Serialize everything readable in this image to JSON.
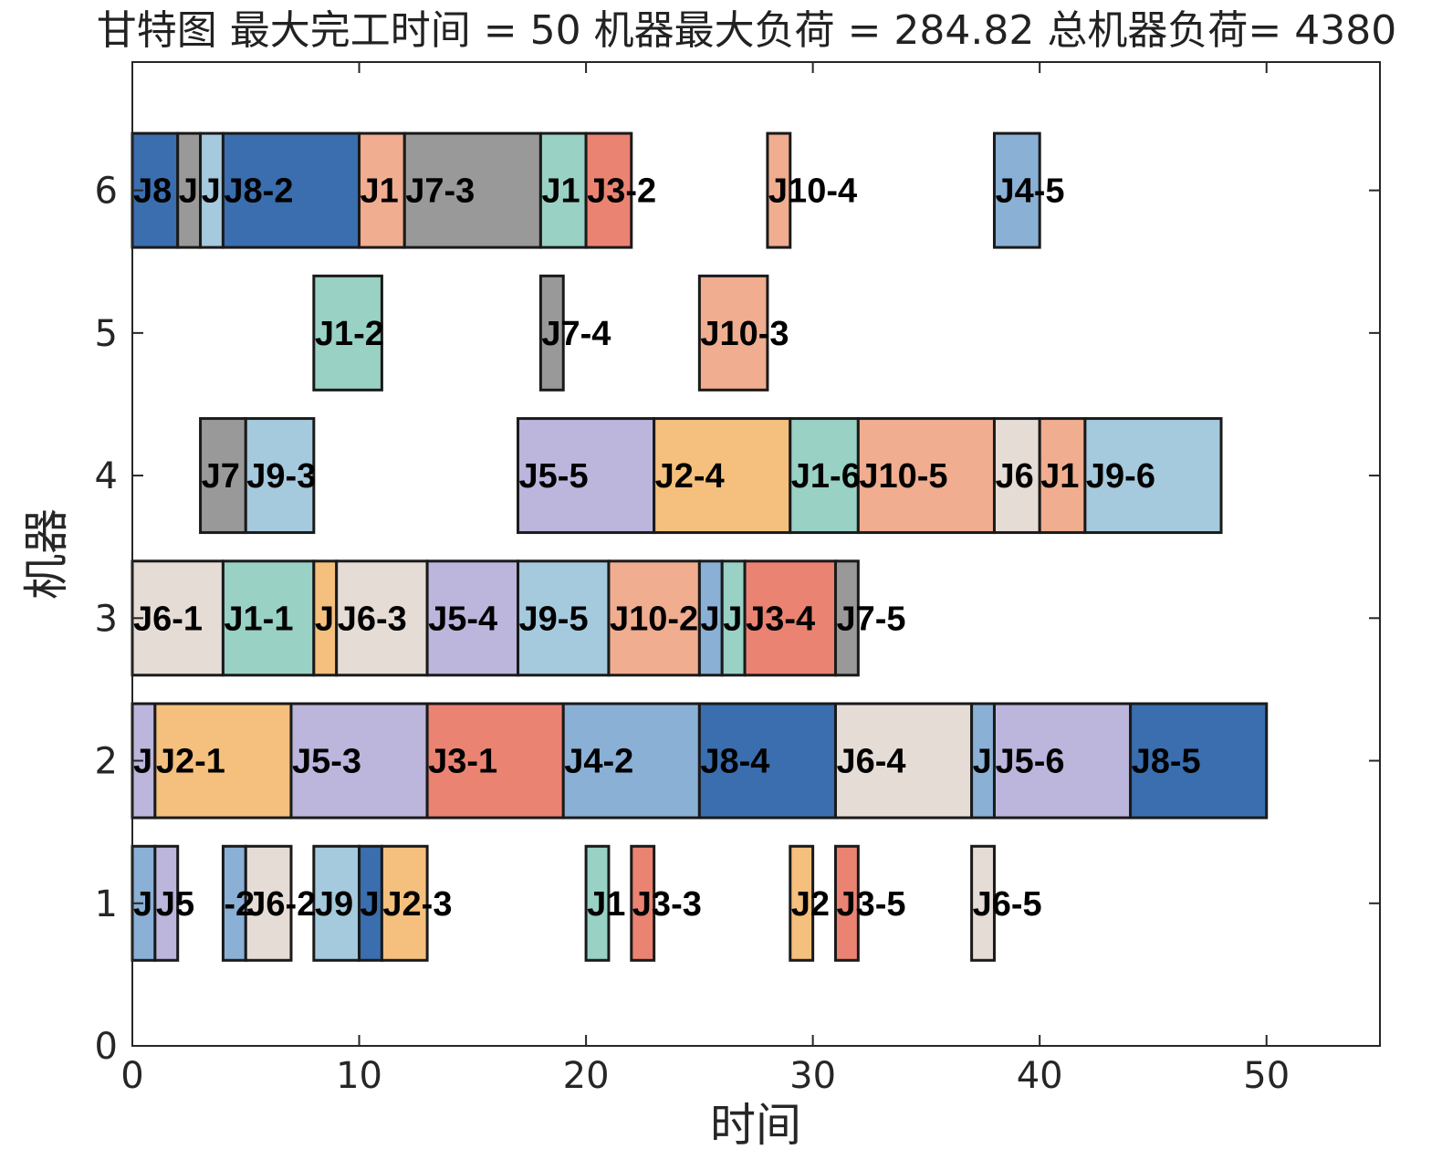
{
  "chart_data": {
    "type": "gantt",
    "title": "甘特图 最大完工时间 = 50 机器最大负荷 = 284.82 总机器负荷= 4380",
    "xlabel": "时间",
    "ylabel": "机器",
    "xlim": [
      0,
      55
    ],
    "ylim": [
      0,
      6.9
    ],
    "xticks": [
      "0",
      "10",
      "20",
      "30",
      "40",
      "50"
    ],
    "yticks": [
      "0",
      "1",
      "2",
      "3",
      "4",
      "5",
      "6"
    ],
    "job_colors": {
      "J1": "#99d1c4",
      "J2": "#f5c07d",
      "J3": "#eb8373",
      "J4": "#8ab0d6",
      "J5": "#bcb5dc",
      "J6": "#e6dcd6",
      "J7": "#999999",
      "J8": "#3a6eae",
      "J9": "#a5c9dd",
      "J10": "#f0ad90"
    },
    "tasks": [
      {
        "machine": 6,
        "job": "J8",
        "label": "J8",
        "start": 0,
        "end": 2
      },
      {
        "machine": 6,
        "job": "J7",
        "label": "J",
        "start": 2,
        "end": 3
      },
      {
        "machine": 6,
        "job": "J9",
        "label": "J",
        "start": 3,
        "end": 4
      },
      {
        "machine": 6,
        "job": "J8",
        "label": "J8-2",
        "start": 4,
        "end": 10
      },
      {
        "machine": 6,
        "job": "J10",
        "label": "J1",
        "start": 10,
        "end": 12
      },
      {
        "machine": 6,
        "job": "J7",
        "label": "J7-3",
        "start": 12,
        "end": 18
      },
      {
        "machine": 6,
        "job": "J1",
        "label": "J1",
        "start": 18,
        "end": 20
      },
      {
        "machine": 6,
        "job": "J3",
        "label": "J3-2",
        "start": 20,
        "end": 22
      },
      {
        "machine": 6,
        "job": "J10",
        "label": "J10-4",
        "start": 28,
        "end": 29
      },
      {
        "machine": 6,
        "job": "J4",
        "label": "J4-5",
        "start": 38,
        "end": 40
      },
      {
        "machine": 5,
        "job": "J1",
        "label": "J1-2",
        "start": 8,
        "end": 11
      },
      {
        "machine": 5,
        "job": "J7",
        "label": "J7-4",
        "start": 18,
        "end": 19
      },
      {
        "machine": 5,
        "job": "J10",
        "label": "J10-3",
        "start": 25,
        "end": 28
      },
      {
        "machine": 4,
        "job": "J7",
        "label": "J7",
        "start": 3,
        "end": 5
      },
      {
        "machine": 4,
        "job": "J9",
        "label": "J9-3",
        "start": 5,
        "end": 8
      },
      {
        "machine": 4,
        "job": "J5",
        "label": "J5-5",
        "start": 17,
        "end": 23
      },
      {
        "machine": 4,
        "job": "J2",
        "label": "J2-4",
        "start": 23,
        "end": 29
      },
      {
        "machine": 4,
        "job": "J1",
        "label": "J1-6",
        "start": 29,
        "end": 32
      },
      {
        "machine": 4,
        "job": "J10",
        "label": "J10-5",
        "start": 32,
        "end": 38
      },
      {
        "machine": 4,
        "job": "J6",
        "label": "J6",
        "start": 38,
        "end": 40
      },
      {
        "machine": 4,
        "job": "J10",
        "label": "J1",
        "start": 40,
        "end": 42
      },
      {
        "machine": 4,
        "job": "J9",
        "label": "J9-6",
        "start": 42,
        "end": 48
      },
      {
        "machine": 3,
        "job": "J6",
        "label": "J6-1",
        "start": 0,
        "end": 4
      },
      {
        "machine": 3,
        "job": "J1",
        "label": "J1-1",
        "start": 4,
        "end": 8
      },
      {
        "machine": 3,
        "job": "J2",
        "label": "J",
        "start": 8,
        "end": 9
      },
      {
        "machine": 3,
        "job": "J6",
        "label": "J6-3",
        "start": 9,
        "end": 13
      },
      {
        "machine": 3,
        "job": "J5",
        "label": "J5-4",
        "start": 13,
        "end": 17
      },
      {
        "machine": 3,
        "job": "J9",
        "label": "J9-5",
        "start": 17,
        "end": 21
      },
      {
        "machine": 3,
        "job": "J10",
        "label": "J10-2",
        "start": 21,
        "end": 25
      },
      {
        "machine": 3,
        "job": "J4",
        "label": "J",
        "start": 25,
        "end": 26
      },
      {
        "machine": 3,
        "job": "J1",
        "label": "J",
        "start": 26,
        "end": 27
      },
      {
        "machine": 3,
        "job": "J3",
        "label": "J3-4",
        "start": 27,
        "end": 31
      },
      {
        "machine": 3,
        "job": "J7",
        "label": "J7-5",
        "start": 31,
        "end": 32
      },
      {
        "machine": 2,
        "job": "J5",
        "label": "J",
        "start": 0,
        "end": 1
      },
      {
        "machine": 2,
        "job": "J2",
        "label": "J2-1",
        "start": 1,
        "end": 7
      },
      {
        "machine": 2,
        "job": "J5",
        "label": "J5-3",
        "start": 7,
        "end": 13
      },
      {
        "machine": 2,
        "job": "J3",
        "label": "J3-1",
        "start": 13,
        "end": 19
      },
      {
        "machine": 2,
        "job": "J4",
        "label": "J4-2",
        "start": 19,
        "end": 25
      },
      {
        "machine": 2,
        "job": "J8",
        "label": "J8-4",
        "start": 25,
        "end": 31
      },
      {
        "machine": 2,
        "job": "J6",
        "label": "J6-4",
        "start": 31,
        "end": 37
      },
      {
        "machine": 2,
        "job": "J4",
        "label": "J",
        "start": 37,
        "end": 38
      },
      {
        "machine": 2,
        "job": "J5",
        "label": "J5-6",
        "start": 38,
        "end": 44
      },
      {
        "machine": 2,
        "job": "J8",
        "label": "J8-5",
        "start": 44,
        "end": 50
      },
      {
        "machine": 1,
        "job": "J4",
        "label": "J",
        "start": 0,
        "end": 1
      },
      {
        "machine": 1,
        "job": "J5",
        "label": "J5",
        "start": 1,
        "end": 2
      },
      {
        "machine": 1,
        "job": "J4",
        "label": "-2",
        "start": 4,
        "end": 5
      },
      {
        "machine": 1,
        "job": "J6",
        "label": "J6-2",
        "start": 5,
        "end": 7
      },
      {
        "machine": 1,
        "job": "J9",
        "label": "J9",
        "start": 8,
        "end": 10
      },
      {
        "machine": 1,
        "job": "J8",
        "label": "J",
        "start": 10,
        "end": 11
      },
      {
        "machine": 1,
        "job": "J2",
        "label": "J2-3",
        "start": 11,
        "end": 13
      },
      {
        "machine": 1,
        "job": "J1",
        "label": "J1",
        "start": 20,
        "end": 21
      },
      {
        "machine": 1,
        "job": "J3",
        "label": "J3-3",
        "start": 22,
        "end": 23
      },
      {
        "machine": 1,
        "job": "J2",
        "label": "J2",
        "start": 29,
        "end": 30
      },
      {
        "machine": 1,
        "job": "J3",
        "label": "J3-5",
        "start": 31,
        "end": 32
      },
      {
        "machine": 1,
        "job": "J6",
        "label": "J6-5",
        "start": 37,
        "end": 38
      }
    ]
  }
}
